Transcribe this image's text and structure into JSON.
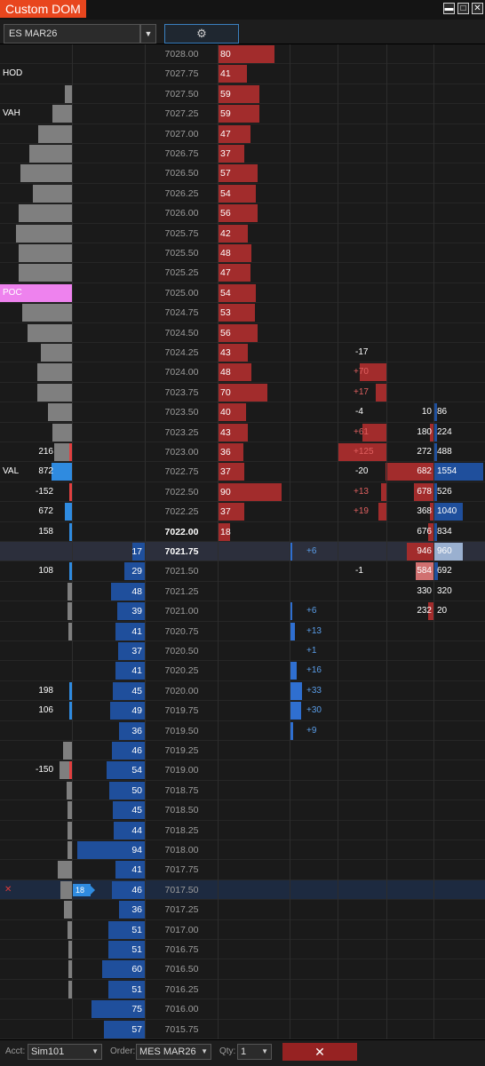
{
  "window": {
    "title": "Custom DOM",
    "minimize": "▬",
    "maximize": "□",
    "close": "✕"
  },
  "toolbar": {
    "instrument": "ES MAR26",
    "dropdown_icon": "chevron-down-icon",
    "settings_icon": "gear-icon"
  },
  "colors": {
    "ask": "#a22c2c",
    "bid": "#1f4f9c",
    "volume": "#7f7f7f",
    "poc": "#ee82ee",
    "delta_pos": "#4a8fe0",
    "delta_neg": "#e06060"
  },
  "rows": [
    {
      "p": "7028.00",
      "a": "80",
      "aw": 64,
      "v": 0
    },
    {
      "p": "7027.75",
      "a": "41",
      "aw": 33,
      "v": 0,
      "lbl": "HOD"
    },
    {
      "p": "7027.50",
      "a": "59",
      "aw": 47,
      "v": 8
    },
    {
      "p": "7027.25",
      "a": "59",
      "aw": 47,
      "v": 22,
      "lbl": "VAH"
    },
    {
      "p": "7027.00",
      "a": "47",
      "aw": 37,
      "v": 38
    },
    {
      "p": "7026.75",
      "a": "37",
      "aw": 30,
      "v": 48
    },
    {
      "p": "7026.50",
      "a": "57",
      "aw": 45,
      "v": 58
    },
    {
      "p": "7026.25",
      "a": "54",
      "aw": 43,
      "v": 44
    },
    {
      "p": "7026.00",
      "a": "56",
      "aw": 45,
      "v": 60
    },
    {
      "p": "7025.75",
      "a": "42",
      "aw": 34,
      "v": 63
    },
    {
      "p": "7025.50",
      "a": "48",
      "aw": 38,
      "v": 60
    },
    {
      "p": "7025.25",
      "a": "47",
      "aw": 37,
      "v": 60
    },
    {
      "p": "7025.00",
      "a": "54",
      "aw": 43,
      "v": 81,
      "poc": true,
      "lbl": "POC"
    },
    {
      "p": "7024.75",
      "a": "53",
      "aw": 42,
      "v": 56
    },
    {
      "p": "7024.50",
      "a": "56",
      "aw": 45,
      "v": 50
    },
    {
      "p": "7024.25",
      "a": "43",
      "aw": 34,
      "v": 35,
      "dl": "-17",
      "dlc": "w"
    },
    {
      "p": "7024.00",
      "a": "48",
      "aw": 38,
      "v": 39,
      "dl": "+70",
      "dlc": "r",
      "dlw": 30
    },
    {
      "p": "7023.75",
      "a": "70",
      "aw": 56,
      "v": 39,
      "dl": "+17",
      "dlc": "r",
      "dlw": 12
    },
    {
      "p": "7023.50",
      "a": "40",
      "aw": 32,
      "v": 27,
      "dl": "-4",
      "dlc": "w",
      "sl": "10",
      "sr": "86",
      "srw": 3
    },
    {
      "p": "7023.25",
      "a": "43",
      "aw": 34,
      "v": 22,
      "dl": "+61",
      "dlc": "r",
      "dlw": 27,
      "sl": "180",
      "slw": 4,
      "sr": "224",
      "srw": 3
    },
    {
      "p": "7023.00",
      "a": "36",
      "aw": 29,
      "v": 20,
      "pn": "216",
      "pmc": "#e04040",
      "dl": "+125",
      "dlc": "r",
      "dlw": 55,
      "sl": "272",
      "sr": "488",
      "srw": 3
    },
    {
      "p": "7022.75",
      "a": "37",
      "aw": 30,
      "v": 0,
      "pn": "872",
      "pmc": "#2f8be0",
      "pmw": 20,
      "lbl": "VAL",
      "dl": "-20",
      "dlc": "w",
      "sl": "682",
      "slw": 54,
      "sr": "1554",
      "srw": 55
    },
    {
      "p": "7022.50",
      "a": "90",
      "aw": 72,
      "v": 0,
      "pn": "-152",
      "pmc": "#e04040",
      "dl": "+13",
      "dlc": "r",
      "dlw": 6,
      "sl": "678",
      "slw": 22,
      "sr": "526",
      "srw": 3
    },
    {
      "p": "7022.25",
      "a": "37",
      "aw": 30,
      "v": 0,
      "pn": "672",
      "pmc": "#2f8be0",
      "pmw": 5,
      "dl": "+19",
      "dlc": "r",
      "dlw": 9,
      "sl": "368",
      "slw": 4,
      "sr": "1040",
      "srw": 32
    },
    {
      "p": "7022.00",
      "a": "18",
      "aw": 14,
      "v": 0,
      "pn": "158",
      "pmc": "#2f8be0",
      "hi": true,
      "sl": "676",
      "slw": 6,
      "sr": "834",
      "srw": 3
    },
    {
      "p": "7021.75",
      "b": "17",
      "bw": 14,
      "v": 0,
      "cur": true,
      "hi": true,
      "dl": "+6",
      "dlc": "b",
      "dbw": 2,
      "sl": "946",
      "slw": 30,
      "sr": "960",
      "srw": 32,
      "srl": true
    },
    {
      "p": "7021.50",
      "b": "29",
      "bw": 23,
      "v": 0,
      "pn": "108",
      "pmc": "#2f8be0",
      "dl": "-1",
      "dlc": "w",
      "sl": "584",
      "slw": 20,
      "sll": true,
      "sr": "692",
      "srw": 4
    },
    {
      "p": "7021.25",
      "b": "48",
      "bw": 38,
      "v": 5,
      "sl": "330",
      "sr": "320"
    },
    {
      "p": "7021.00",
      "b": "39",
      "bw": 31,
      "v": 5,
      "dl": "+6",
      "dlc": "b",
      "dbw": 2,
      "sl": "232",
      "slw": 6,
      "sr": "20"
    },
    {
      "p": "7020.75",
      "b": "41",
      "bw": 33,
      "v": 4,
      "dl": "+13",
      "dlc": "b",
      "dbw": 5
    },
    {
      "p": "7020.50",
      "b": "37",
      "bw": 30,
      "v": 0,
      "dl": "+1",
      "dlc": "b"
    },
    {
      "p": "7020.25",
      "b": "41",
      "bw": 33,
      "v": 0,
      "dl": "+16",
      "dlc": "b",
      "dbw": 7
    },
    {
      "p": "7020.00",
      "b": "45",
      "bw": 36,
      "v": 0,
      "pn": "198",
      "pmc": "#2f8be0",
      "dl": "+33",
      "dlc": "b",
      "dbw": 13
    },
    {
      "p": "7019.75",
      "b": "49",
      "bw": 39,
      "v": 0,
      "pn": "106",
      "pmc": "#2f8be0",
      "dl": "+30",
      "dlc": "b",
      "dbw": 12
    },
    {
      "p": "7019.50",
      "b": "36",
      "bw": 29,
      "v": 0,
      "dl": "+9",
      "dlc": "b",
      "dbw": 3
    },
    {
      "p": "7019.25",
      "b": "46",
      "bw": 37,
      "v": 10
    },
    {
      "p": "7019.00",
      "b": "54",
      "bw": 43,
      "v": 14,
      "pn": "-150",
      "pmc": "#e04040"
    },
    {
      "p": "7018.75",
      "b": "50",
      "bw": 40,
      "v": 6
    },
    {
      "p": "7018.50",
      "b": "45",
      "bw": 36,
      "v": 5
    },
    {
      "p": "7018.25",
      "b": "44",
      "bw": 35,
      "v": 5
    },
    {
      "p": "7018.00",
      "b": "94",
      "bw": 76,
      "v": 5
    },
    {
      "p": "7017.75",
      "b": "41",
      "bw": 33,
      "v": 16
    },
    {
      "p": "7017.50",
      "b": "46",
      "bw": 37,
      "v": 13,
      "ord": true,
      "ordq": "18",
      "x": "✕"
    },
    {
      "p": "7017.25",
      "b": "36",
      "bw": 29,
      "v": 9
    },
    {
      "p": "7017.00",
      "b": "51",
      "bw": 41,
      "v": 5
    },
    {
      "p": "7016.75",
      "b": "51",
      "bw": 41,
      "v": 4
    },
    {
      "p": "7016.50",
      "b": "60",
      "bw": 48,
      "v": 4
    },
    {
      "p": "7016.25",
      "b": "51",
      "bw": 41,
      "v": 4
    },
    {
      "p": "7016.00",
      "b": "75",
      "bw": 60,
      "v": 0
    },
    {
      "p": "7015.75",
      "b": "57",
      "bw": 46,
      "v": 0
    }
  ],
  "bottom": {
    "acct_label": "Acct:",
    "acct": "Sim101",
    "order_label": "Order:",
    "order": "MES MAR26",
    "qty_label": "Qty:",
    "qty": "1",
    "close_icon": "✕"
  }
}
